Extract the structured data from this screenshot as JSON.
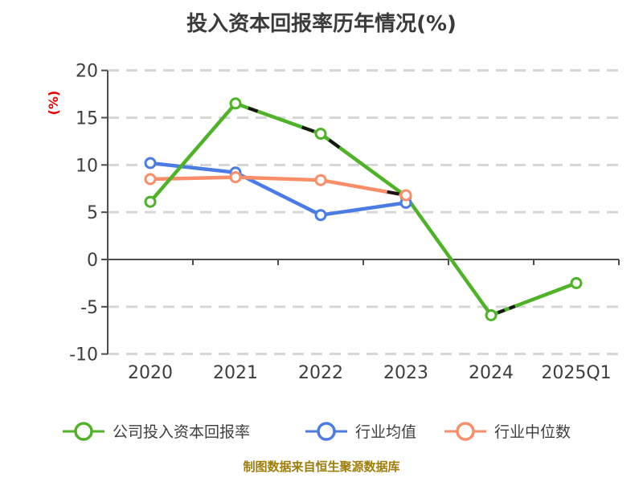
{
  "chart_data": {
    "type": "line",
    "title": "投入资本回报率历年情况(%)",
    "ylabel": "(%)",
    "xlabel": "",
    "categories": [
      "2020",
      "2021",
      "2022",
      "2023",
      "2024",
      "2025Q1"
    ],
    "yticks": [
      20,
      15,
      10,
      5,
      0,
      -5,
      -10
    ],
    "ylim": [
      -10,
      20
    ],
    "grid": "horizontal-dashed",
    "legend_position": "bottom",
    "marker": "circle-white-fill",
    "series": [
      {
        "name": "公司投入资本回报率",
        "color": "#4fb328",
        "values": [
          6.1,
          16.5,
          13.3,
          6.7,
          -5.9,
          -2.5
        ]
      },
      {
        "name": "行业均值",
        "color": "#4a7ce4",
        "values": [
          10.2,
          9.2,
          4.7,
          6.0,
          null,
          null
        ]
      },
      {
        "name": "行业中位数",
        "color": "#f98e68",
        "values": [
          8.5,
          8.7,
          8.4,
          6.8,
          null,
          null
        ]
      }
    ],
    "source_note": "制图数据来自恒生聚源数据库"
  },
  "colors": {
    "title_text": "#3b3b3b",
    "axis_text": "#3e3e3e",
    "axis_line": "#4d4d4d",
    "gridline": "#d6d6d6",
    "y_axis_label": "#e60000",
    "footer_text": "#9e7d0a",
    "marker_fill": "#ffffff"
  }
}
